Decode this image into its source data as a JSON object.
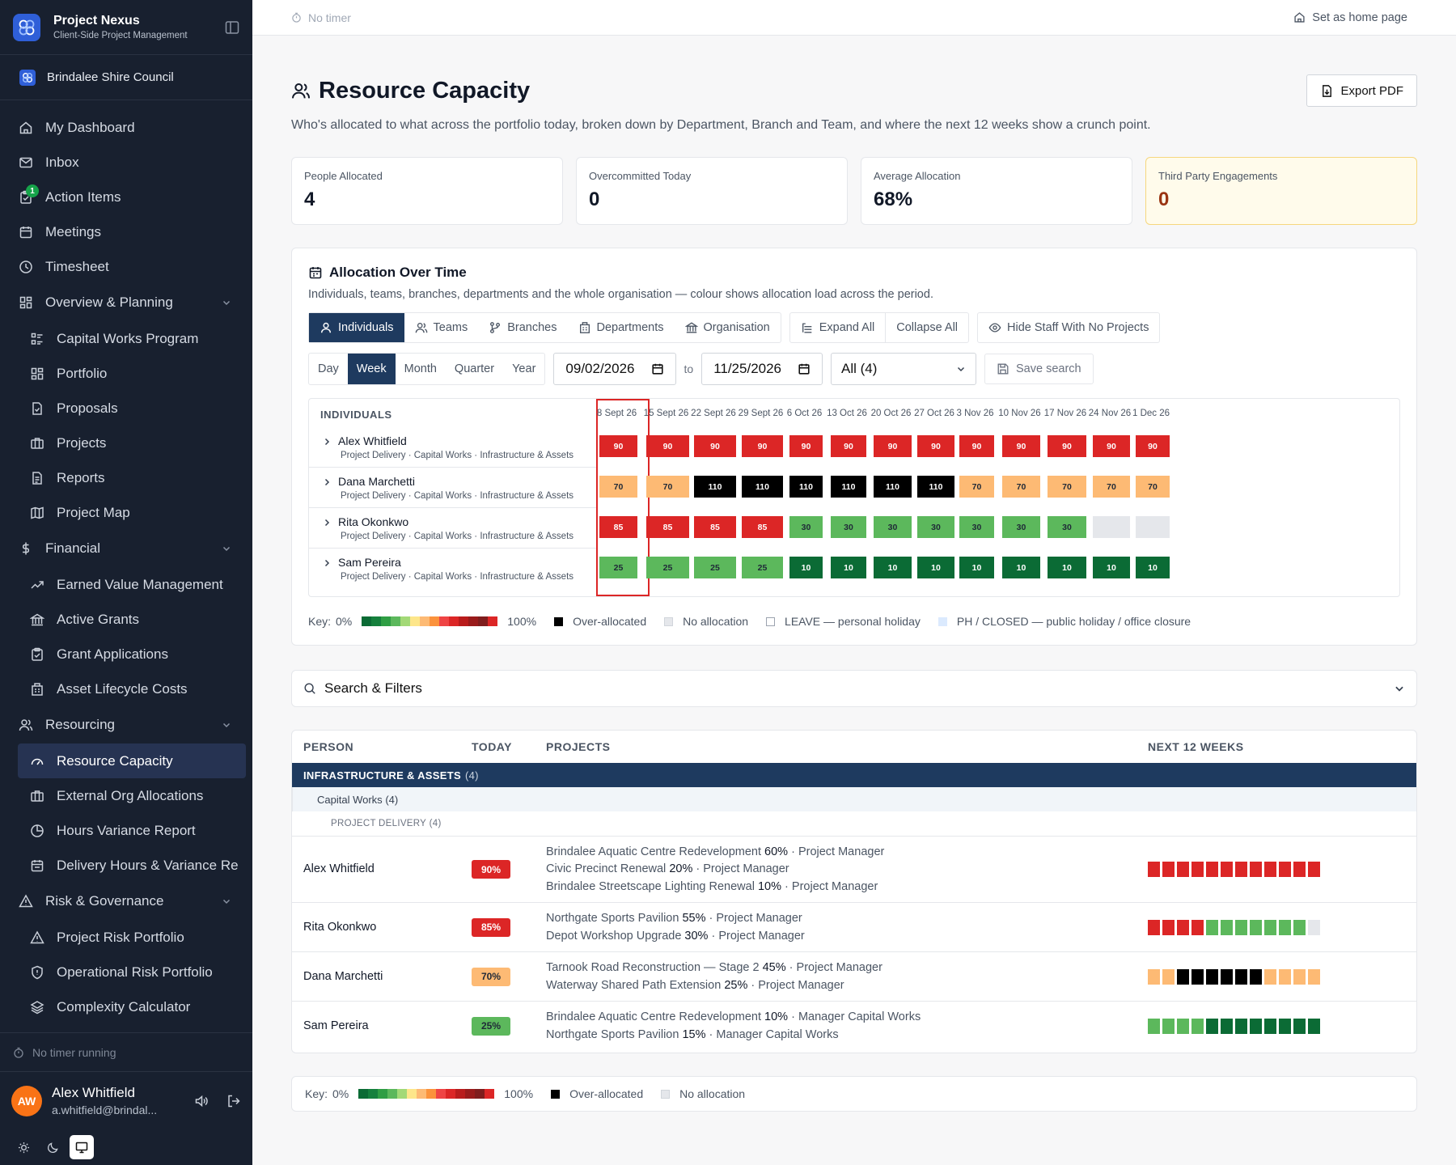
{
  "app": {
    "name": "Project Nexus",
    "tagline": "Client-Side Project Management",
    "org": "Brindalee Shire Council"
  },
  "nav": {
    "dashboard": "My Dashboard",
    "inbox": "Inbox",
    "action_items": "Action Items",
    "action_badge": "1",
    "meetings": "Meetings",
    "timesheet": "Timesheet",
    "overview": "Overview & Planning",
    "capital_works": "Capital Works Program",
    "portfolio": "Portfolio",
    "proposals": "Proposals",
    "projects": "Projects",
    "reports": "Reports",
    "project_map": "Project Map",
    "financial": "Financial",
    "evm": "Earned Value Management",
    "active_grants": "Active Grants",
    "grant_apps": "Grant Applications",
    "asset_costs": "Asset Lifecycle Costs",
    "resourcing": "Resourcing",
    "resource_capacity": "Resource Capacity",
    "external_org": "External Org Allocations",
    "hours_variance": "Hours Variance Report",
    "delivery_hours": "Delivery Hours & Variance Re",
    "risk": "Risk & Governance",
    "project_risk": "Project Risk Portfolio",
    "op_risk": "Operational Risk Portfolio",
    "complexity": "Complexity Calculator"
  },
  "sidebar_footer": {
    "timer": "No timer running",
    "user_initials": "AW",
    "user_name": "Alex Whitfield",
    "user_email": "a.whitfield@brindal..."
  },
  "topbar": {
    "timer": "No timer",
    "home": "Set as home page"
  },
  "page": {
    "title": "Resource Capacity",
    "subtitle": "Who's allocated to what across the portfolio today, broken down by Department, Branch and Team, and where the next 12 weeks show a crunch point.",
    "export": "Export PDF"
  },
  "stats": [
    {
      "label": "People Allocated",
      "value": "4"
    },
    {
      "label": "Overcommitted Today",
      "value": "0"
    },
    {
      "label": "Average Allocation",
      "value": "68%"
    },
    {
      "label": "Third Party Engagements",
      "value": "0"
    }
  ],
  "aot": {
    "title": "Allocation Over Time",
    "desc": "Individuals, teams, branches, departments and the whole organisation — colour shows allocation load across the period.",
    "views": [
      "Individuals",
      "Teams",
      "Branches",
      "Departments",
      "Organisation"
    ],
    "expand": "Expand All",
    "collapse": "Collapse All",
    "hide_staff": "Hide Staff With No Projects",
    "periods": [
      "Day",
      "Week",
      "Month",
      "Quarter",
      "Year"
    ],
    "from": "09/02/2026",
    "to_label": "to",
    "to": "11/25/2026",
    "filter": "All (4)",
    "save": "Save search",
    "header": "INDIVIDUALS",
    "weeks": [
      "8 Sept 26",
      "15 Sept 26",
      "22 Sept 26",
      "29 Sept 26",
      "6 Oct 26",
      "13 Oct 26",
      "20 Oct 26",
      "27 Oct 26",
      "3 Nov 26",
      "10 Nov 26",
      "17 Nov 26",
      "24 Nov 26",
      "1 Dec 26"
    ],
    "rows": [
      {
        "name": "Alex Whitfield",
        "path": "Project Delivery · Capital Works · Infrastructure & Assets",
        "values": [
          90,
          90,
          90,
          90,
          90,
          90,
          90,
          90,
          90,
          90,
          90,
          90,
          90
        ]
      },
      {
        "name": "Dana Marchetti",
        "path": "Project Delivery · Capital Works · Infrastructure & Assets",
        "values": [
          70,
          70,
          110,
          110,
          110,
          110,
          110,
          110,
          70,
          70,
          70,
          70,
          70
        ]
      },
      {
        "name": "Rita Okonkwo",
        "path": "Project Delivery · Capital Works · Infrastructure & Assets",
        "values": [
          85,
          85,
          85,
          85,
          30,
          30,
          30,
          30,
          30,
          30,
          30,
          null,
          null
        ]
      },
      {
        "name": "Sam Pereira",
        "path": "Project Delivery · Capital Works · Infrastructure & Assets",
        "values": [
          25,
          25,
          25,
          25,
          10,
          10,
          10,
          10,
          10,
          10,
          10,
          10,
          10
        ]
      }
    ]
  },
  "key": {
    "label": "Key:",
    "min": "0%",
    "max": "100%",
    "over": "Over-allocated",
    "none": "No allocation",
    "leave": "LEAVE — personal holiday",
    "ph": "PH / CLOSED — public holiday / office closure"
  },
  "filters": {
    "label": "Search & Filters"
  },
  "table": {
    "cols": [
      "PERSON",
      "TODAY",
      "PROJECTS",
      "NEXT 12 WEEKS"
    ],
    "dept": "INFRASTRUCTURE & ASSETS",
    "dept_count": "(4)",
    "team": "Capital Works",
    "team_count": "(4)",
    "branch": "PROJECT DELIVERY",
    "branch_count": "(4)",
    "people": [
      {
        "name": "Alex Whitfield",
        "today": "90%",
        "projects": [
          {
            "name": "Brindalee Aquatic Centre Redevelopment",
            "pct": "60%",
            "role": "· Project Manager"
          },
          {
            "name": "Civic Precinct Renewal",
            "pct": "20%",
            "role": "· Project Manager"
          },
          {
            "name": "Brindalee Streetscape Lighting Renewal",
            "pct": "10%",
            "role": "· Project Manager"
          }
        ],
        "weeks": [
          90,
          90,
          90,
          90,
          90,
          90,
          90,
          90,
          90,
          90,
          90,
          90
        ]
      },
      {
        "name": "Rita Okonkwo",
        "today": "85%",
        "projects": [
          {
            "name": "Northgate Sports Pavilion",
            "pct": "55%",
            "role": "· Project Manager"
          },
          {
            "name": "Depot Workshop Upgrade",
            "pct": "30%",
            "role": "· Project Manager"
          }
        ],
        "weeks": [
          85,
          85,
          85,
          85,
          30,
          30,
          30,
          30,
          30,
          30,
          30,
          null
        ]
      },
      {
        "name": "Dana Marchetti",
        "today": "70%",
        "projects": [
          {
            "name": "Tarnook Road Reconstruction — Stage 2",
            "pct": "45%",
            "role": "· Project Manager"
          },
          {
            "name": "Waterway Shared Path Extension",
            "pct": "25%",
            "role": "· Project Manager"
          }
        ],
        "weeks": [
          70,
          70,
          110,
          110,
          110,
          110,
          110,
          110,
          70,
          70,
          70,
          70
        ]
      },
      {
        "name": "Sam Pereira",
        "today": "25%",
        "projects": [
          {
            "name": "Brindalee Aquatic Centre Redevelopment",
            "pct": "10%",
            "role": "· Manager Capital Works"
          },
          {
            "name": "Northgate Sports Pavilion",
            "pct": "15%",
            "role": "· Manager Capital Works"
          }
        ],
        "weeks": [
          25,
          25,
          25,
          25,
          10,
          10,
          10,
          10,
          10,
          10,
          10,
          10
        ]
      }
    ]
  },
  "colors": {
    "red": "#dc2626",
    "orange": "#fdba74",
    "black": "#000000",
    "lightgreen": "#5cb85c",
    "darkgreen": "#0b6b35",
    "empty": "#e5e7eb"
  }
}
